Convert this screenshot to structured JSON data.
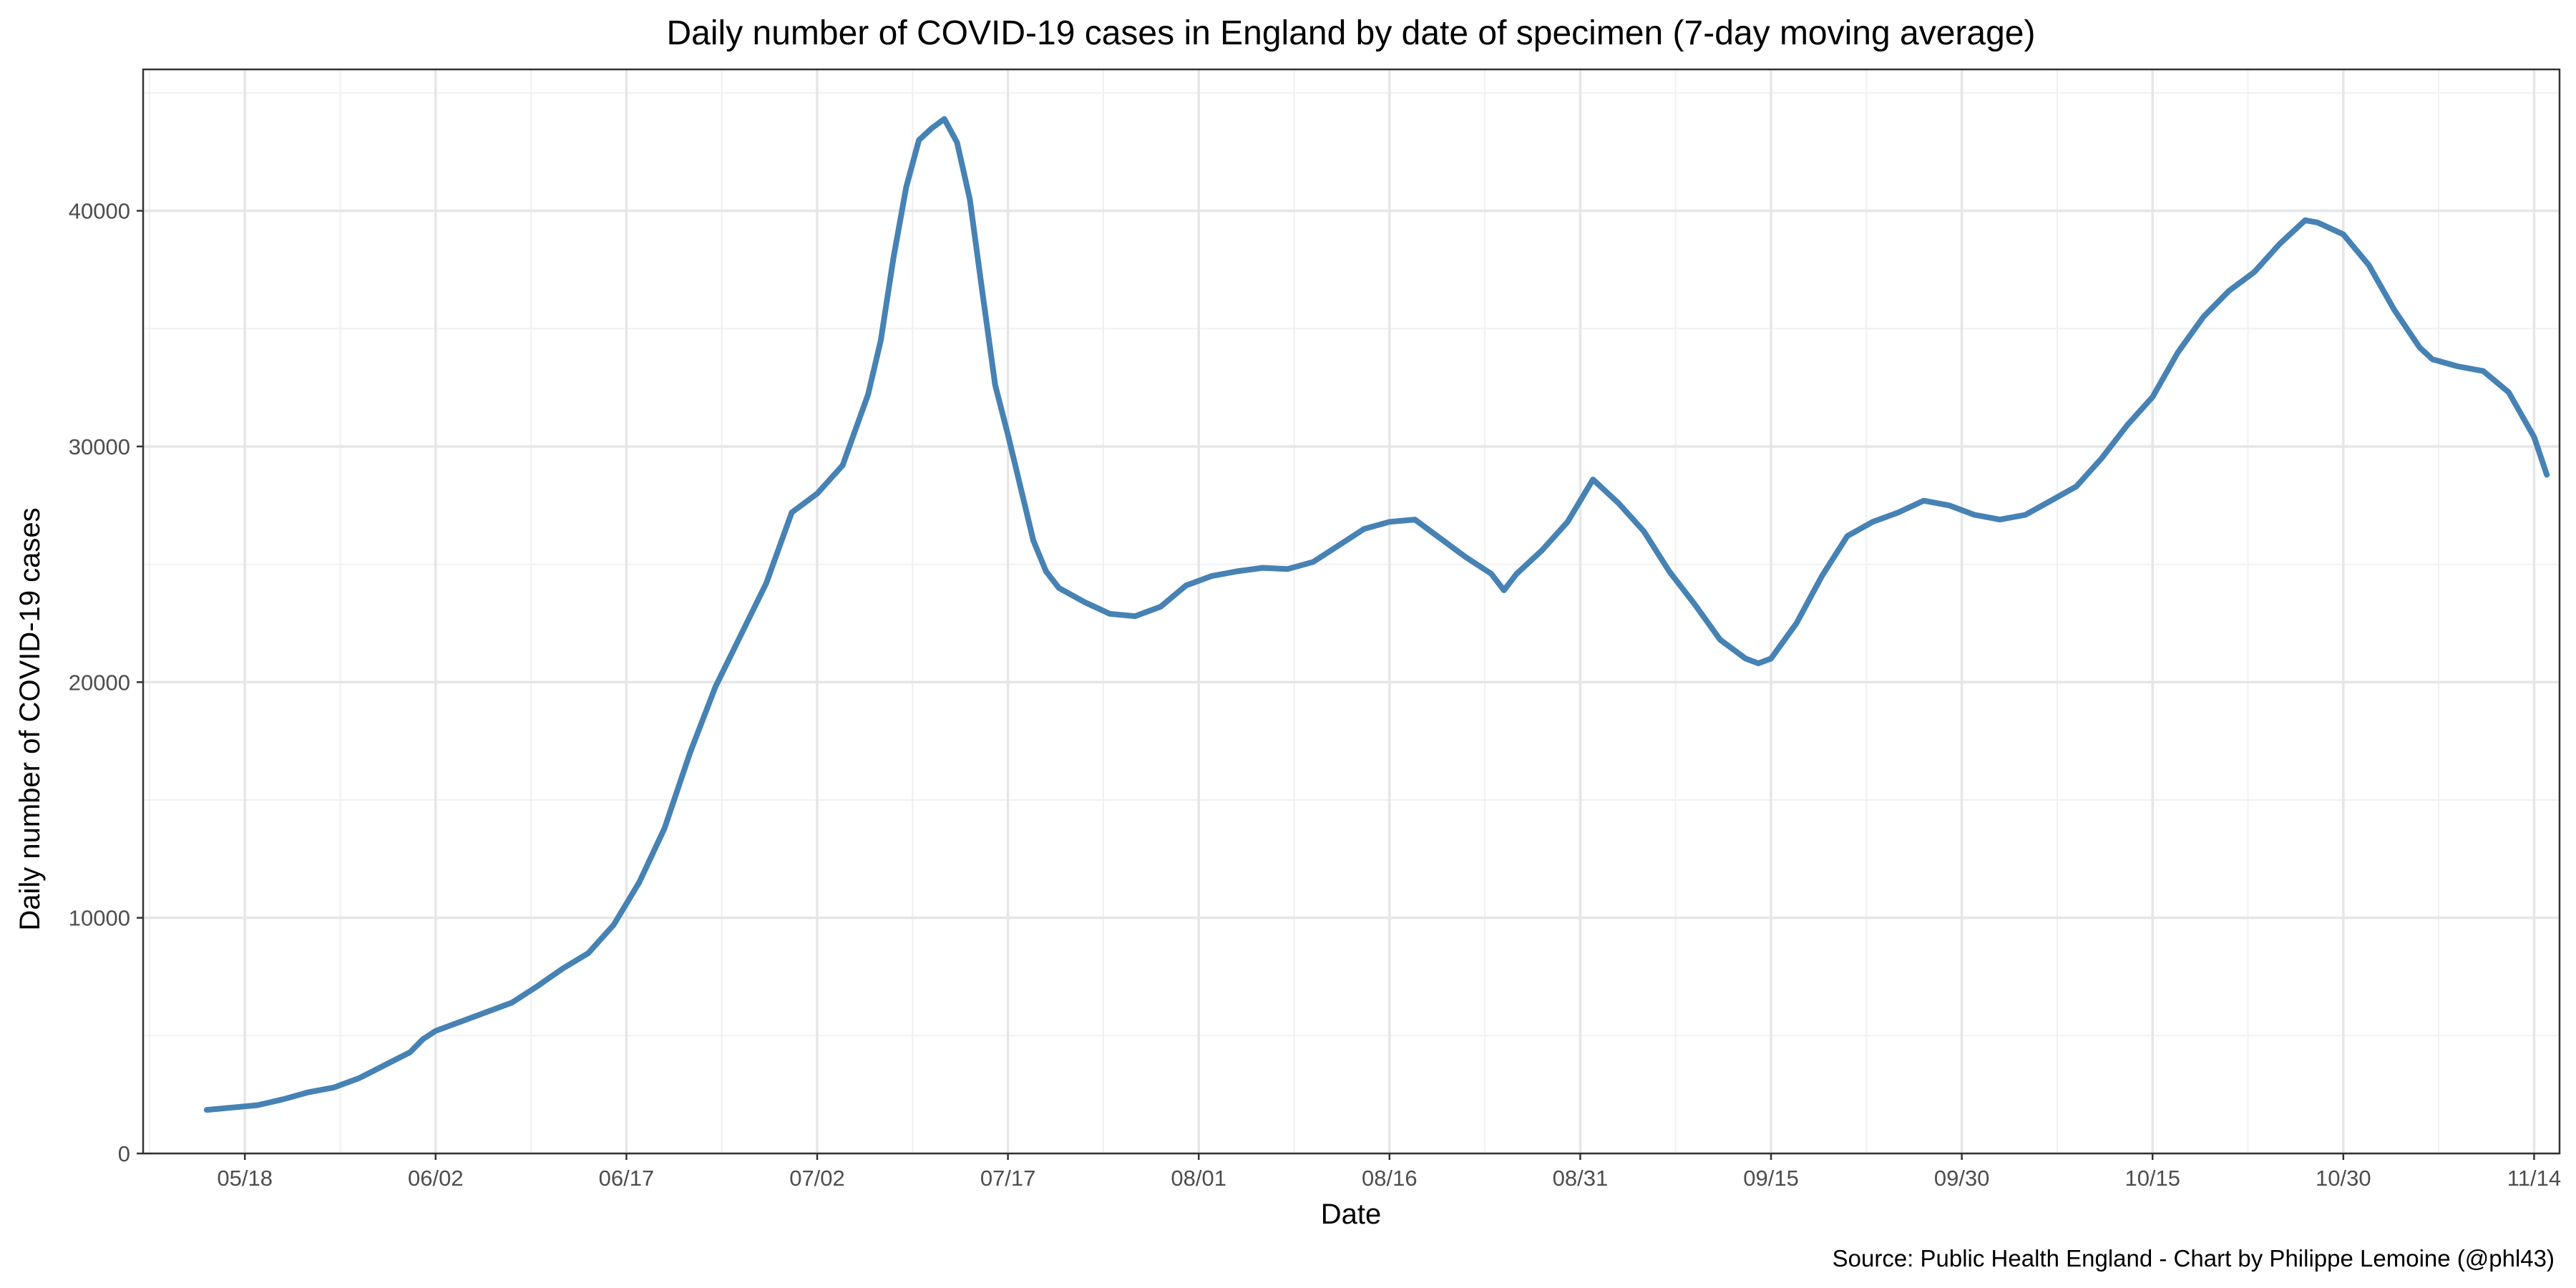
{
  "chart_data": {
    "type": "line",
    "title": "Daily number of COVID-19 cases in England by date of specimen (7-day moving average)",
    "xlabel": "Date",
    "ylabel": "Daily number of COVID-19 cases",
    "caption": "Source: Public Health England - Chart by Philippe Lemoine (@phl43)",
    "x_axis_type": "date",
    "xlim": [
      "2021-05-10",
      "2021-11-16"
    ],
    "ylim": [
      0,
      46000
    ],
    "x_ticks": [
      {
        "date": "2021-05-18",
        "label": "05/18"
      },
      {
        "date": "2021-06-02",
        "label": "06/02"
      },
      {
        "date": "2021-06-17",
        "label": "06/17"
      },
      {
        "date": "2021-07-02",
        "label": "07/02"
      },
      {
        "date": "2021-07-17",
        "label": "07/17"
      },
      {
        "date": "2021-08-01",
        "label": "08/01"
      },
      {
        "date": "2021-08-16",
        "label": "08/16"
      },
      {
        "date": "2021-08-31",
        "label": "08/31"
      },
      {
        "date": "2021-09-15",
        "label": "09/15"
      },
      {
        "date": "2021-09-30",
        "label": "09/30"
      },
      {
        "date": "2021-10-15",
        "label": "10/15"
      },
      {
        "date": "2021-10-30",
        "label": "10/30"
      },
      {
        "date": "2021-11-14",
        "label": "11/14"
      }
    ],
    "y_ticks": [
      {
        "value": 0,
        "label": "0"
      },
      {
        "value": 10000,
        "label": "10000"
      },
      {
        "value": 20000,
        "label": "20000"
      },
      {
        "value": 30000,
        "label": "30000"
      },
      {
        "value": 40000,
        "label": "40000"
      }
    ],
    "grid": true,
    "line_color": "#4682b4",
    "series": [
      {
        "values": [
          [
            "2021-05-15",
            1850
          ],
          [
            "2021-05-17",
            1950
          ],
          [
            "2021-05-19",
            2050
          ],
          [
            "2021-05-21",
            2300
          ],
          [
            "2021-05-23",
            2600
          ],
          [
            "2021-05-25",
            2800
          ],
          [
            "2021-05-27",
            3200
          ],
          [
            "2021-05-29",
            3750
          ],
          [
            "2021-05-31",
            4300
          ],
          [
            "2021-06-01",
            4850
          ],
          [
            "2021-06-02",
            5200
          ],
          [
            "2021-06-04",
            5600
          ],
          [
            "2021-06-06",
            6000
          ],
          [
            "2021-06-08",
            6400
          ],
          [
            "2021-06-10",
            7100
          ],
          [
            "2021-06-12",
            7850
          ],
          [
            "2021-06-14",
            8500
          ],
          [
            "2021-06-16",
            9700
          ],
          [
            "2021-06-18",
            11500
          ],
          [
            "2021-06-20",
            13800
          ],
          [
            "2021-06-22",
            17000
          ],
          [
            "2021-06-24",
            19800
          ],
          [
            "2021-06-26",
            22000
          ],
          [
            "2021-06-28",
            24200
          ],
          [
            "2021-06-30",
            27200
          ],
          [
            "2021-07-02",
            28000
          ],
          [
            "2021-07-04",
            29200
          ],
          [
            "2021-07-06",
            32200
          ],
          [
            "2021-07-07",
            34500
          ],
          [
            "2021-07-08",
            38000
          ],
          [
            "2021-07-09",
            41000
          ],
          [
            "2021-07-10",
            43000
          ],
          [
            "2021-07-11",
            43500
          ],
          [
            "2021-07-12",
            43900
          ],
          [
            "2021-07-13",
            42900
          ],
          [
            "2021-07-14",
            40500
          ],
          [
            "2021-07-15",
            36500
          ],
          [
            "2021-07-16",
            32600
          ],
          [
            "2021-07-17",
            30500
          ],
          [
            "2021-07-19",
            26000
          ],
          [
            "2021-07-20",
            24700
          ],
          [
            "2021-07-21",
            24000
          ],
          [
            "2021-07-23",
            23400
          ],
          [
            "2021-07-25",
            22900
          ],
          [
            "2021-07-27",
            22800
          ],
          [
            "2021-07-29",
            23200
          ],
          [
            "2021-07-31",
            24100
          ],
          [
            "2021-08-02",
            24500
          ],
          [
            "2021-08-04",
            24700
          ],
          [
            "2021-08-06",
            24850
          ],
          [
            "2021-08-08",
            24800
          ],
          [
            "2021-08-10",
            25100
          ],
          [
            "2021-08-12",
            25800
          ],
          [
            "2021-08-14",
            26500
          ],
          [
            "2021-08-16",
            26800
          ],
          [
            "2021-08-18",
            26900
          ],
          [
            "2021-08-20",
            26100
          ],
          [
            "2021-08-22",
            25300
          ],
          [
            "2021-08-24",
            24600
          ],
          [
            "2021-08-25",
            23900
          ],
          [
            "2021-08-26",
            24600
          ],
          [
            "2021-08-28",
            25600
          ],
          [
            "2021-08-30",
            26800
          ],
          [
            "2021-09-01",
            28600
          ],
          [
            "2021-09-03",
            27600
          ],
          [
            "2021-09-05",
            26400
          ],
          [
            "2021-09-07",
            24700
          ],
          [
            "2021-09-09",
            23300
          ],
          [
            "2021-09-11",
            21800
          ],
          [
            "2021-09-13",
            21000
          ],
          [
            "2021-09-14",
            20800
          ],
          [
            "2021-09-15",
            21000
          ],
          [
            "2021-09-17",
            22500
          ],
          [
            "2021-09-19",
            24500
          ],
          [
            "2021-09-21",
            26200
          ],
          [
            "2021-09-23",
            26800
          ],
          [
            "2021-09-25",
            27200
          ],
          [
            "2021-09-27",
            27700
          ],
          [
            "2021-09-29",
            27500
          ],
          [
            "2021-10-01",
            27100
          ],
          [
            "2021-10-03",
            26900
          ],
          [
            "2021-10-05",
            27100
          ],
          [
            "2021-10-07",
            27700
          ],
          [
            "2021-10-09",
            28300
          ],
          [
            "2021-10-11",
            29500
          ],
          [
            "2021-10-13",
            30900
          ],
          [
            "2021-10-15",
            32100
          ],
          [
            "2021-10-17",
            34000
          ],
          [
            "2021-10-19",
            35500
          ],
          [
            "2021-10-21",
            36600
          ],
          [
            "2021-10-23",
            37400
          ],
          [
            "2021-10-25",
            38600
          ],
          [
            "2021-10-27",
            39600
          ],
          [
            "2021-10-28",
            39500
          ],
          [
            "2021-10-30",
            39000
          ],
          [
            "2021-11-01",
            37700
          ],
          [
            "2021-11-03",
            35800
          ],
          [
            "2021-11-05",
            34200
          ],
          [
            "2021-11-06",
            33700
          ],
          [
            "2021-11-08",
            33400
          ],
          [
            "2021-11-10",
            33200
          ],
          [
            "2021-11-12",
            32300
          ],
          [
            "2021-11-14",
            30400
          ],
          [
            "2021-11-15",
            28800
          ]
        ]
      }
    ]
  }
}
